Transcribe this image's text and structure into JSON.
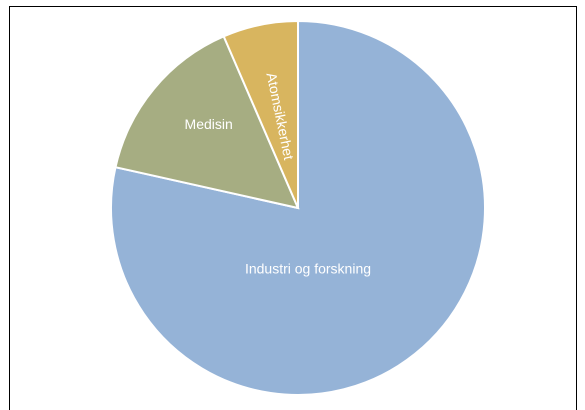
{
  "chart_data": {
    "type": "pie",
    "title": "",
    "start_angle_deg": 0,
    "direction": "clockwise",
    "slices": [
      {
        "label": "Industri og forskning",
        "value": 78.5,
        "color": "#95b3d7",
        "label_rotated": false
      },
      {
        "label": "Medisin",
        "value": 15.0,
        "color": "#a6ad82",
        "label_rotated": false
      },
      {
        "label": "Atomsikkerhet",
        "value": 6.5,
        "color": "#d8b55f",
        "label_rotated": true
      }
    ]
  }
}
